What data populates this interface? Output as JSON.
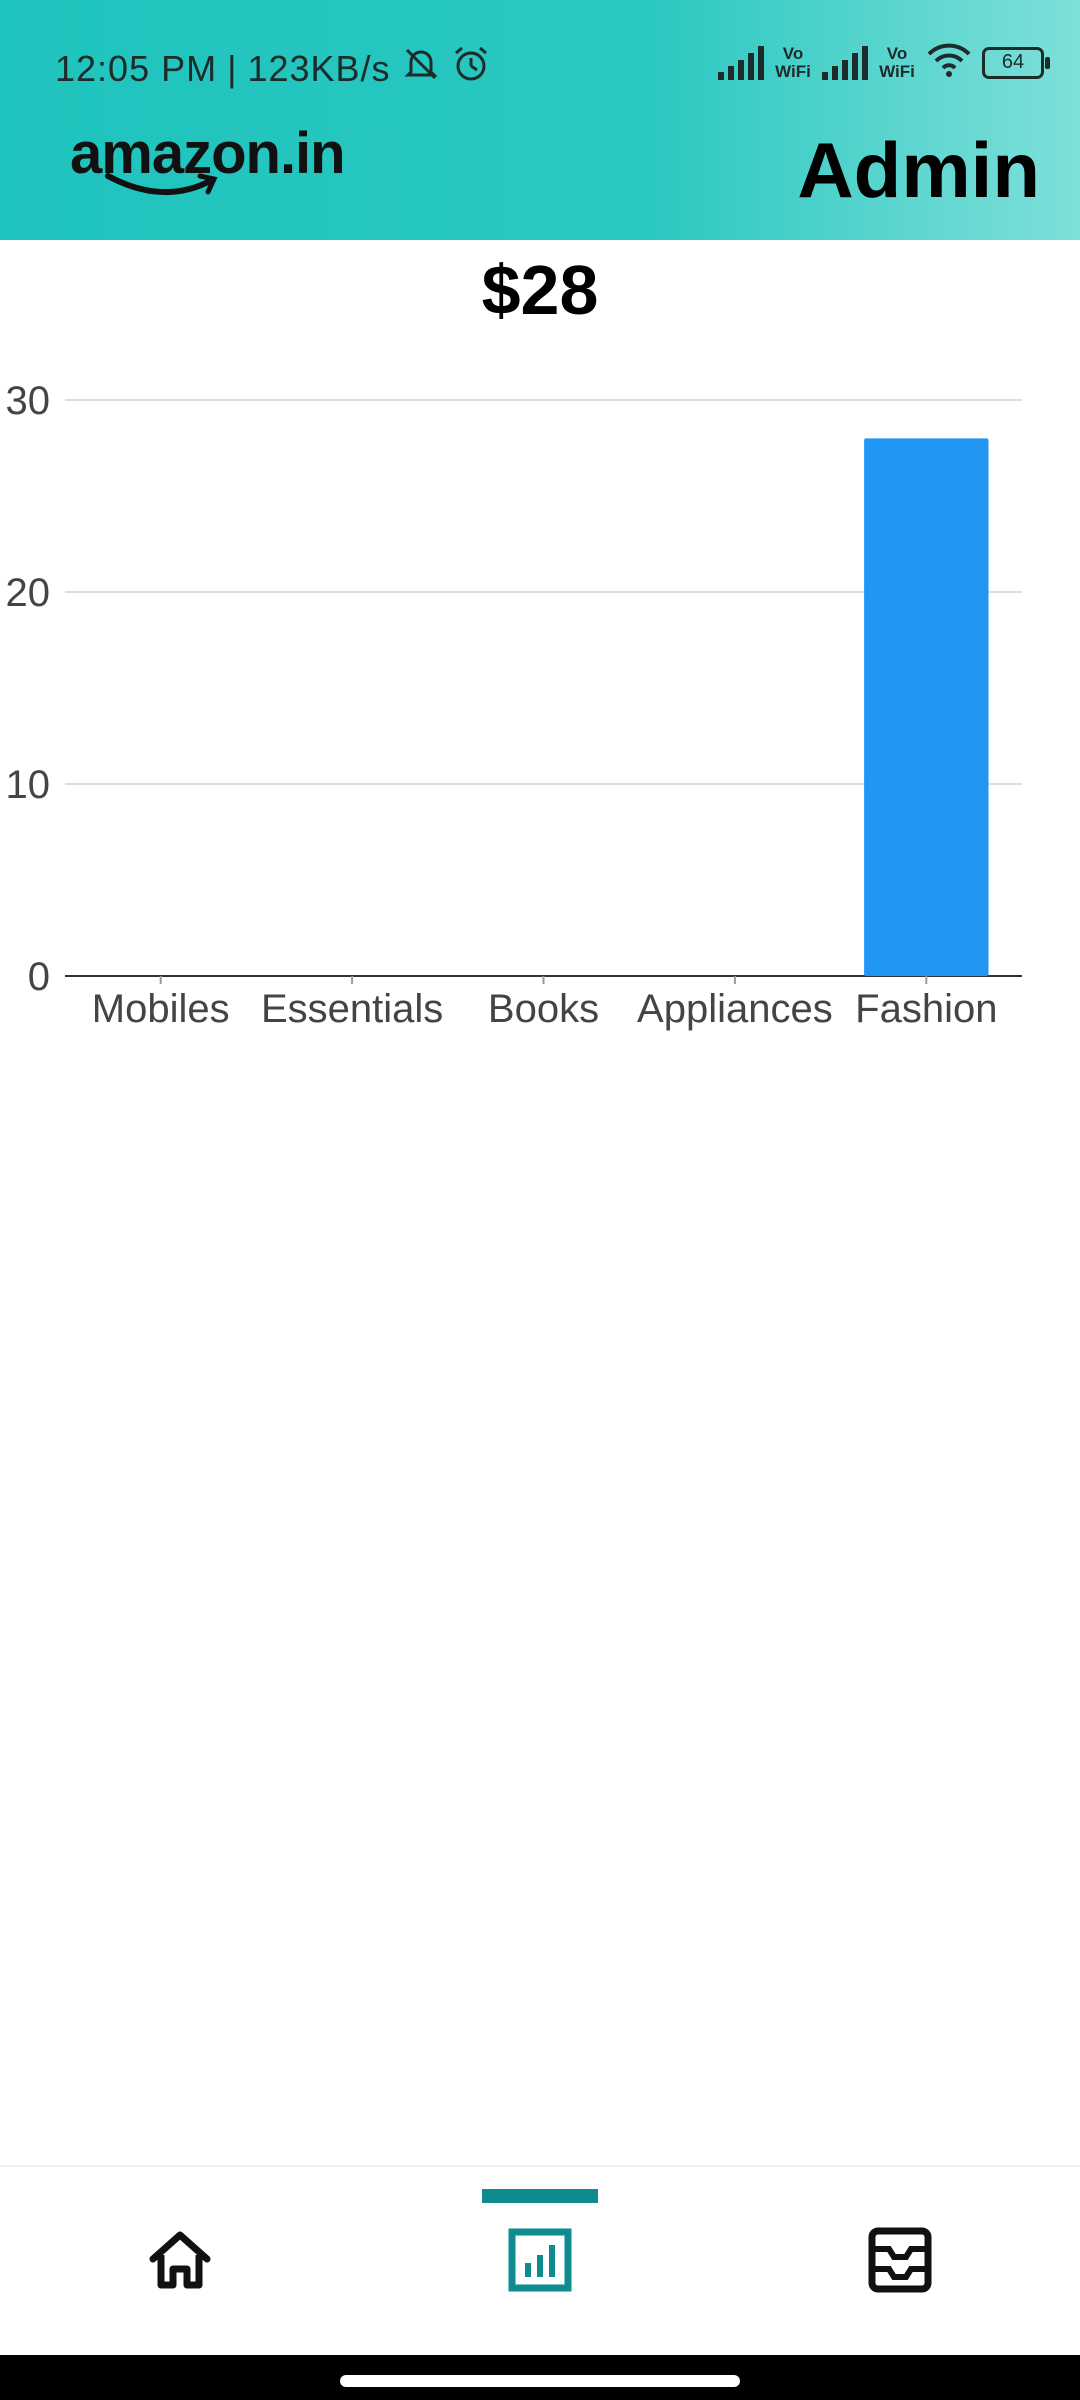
{
  "status_bar": {
    "time": "12:05 PM",
    "separator": "|",
    "speed": "123KB/s",
    "vowifi_1": "Vo WiFi",
    "vowifi_2": "Vo WiFi",
    "battery": "64"
  },
  "app_bar": {
    "logo_text": "amazon.in",
    "title": "Admin"
  },
  "main": {
    "total": "$28"
  },
  "chart_data": {
    "type": "bar",
    "categories": [
      "Mobiles",
      "Essentials",
      "Books",
      "Appliances",
      "Fashion"
    ],
    "values": [
      0,
      0,
      0,
      0,
      28
    ],
    "yticks": [
      0,
      10,
      20,
      30
    ],
    "ylim": [
      0,
      30
    ],
    "bar_color": "#2196F3",
    "grid": true
  },
  "bottom_nav": {
    "items": [
      {
        "icon": "home-icon",
        "active": false
      },
      {
        "icon": "analytics-icon",
        "active": true
      },
      {
        "icon": "orders-icon",
        "active": false
      }
    ],
    "active_color": "#0e8b8f"
  }
}
